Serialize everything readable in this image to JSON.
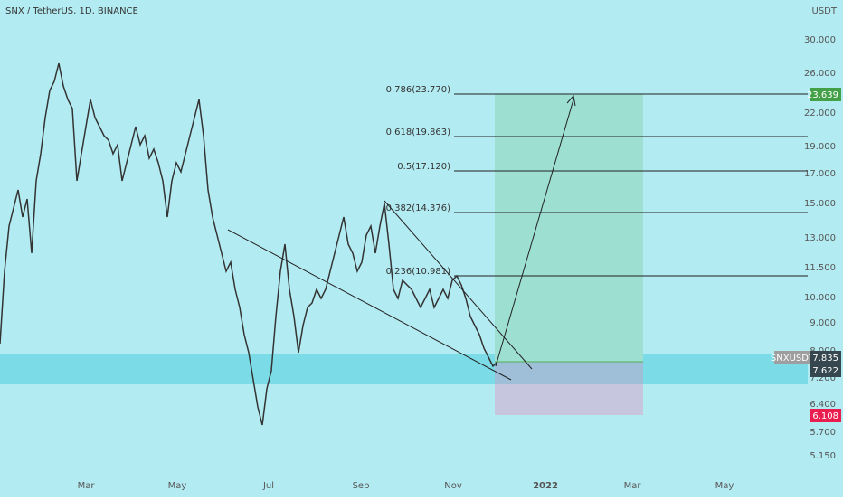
{
  "header": {
    "title": "SNX / TetherUS, 1D, BINANCE",
    "currency": "USDT"
  },
  "price_axis": {
    "labels": [
      "30.000",
      "26.000",
      "22.000",
      "19.000",
      "17.000",
      "15.000",
      "13.000",
      "11.500",
      "10.000",
      "9.000",
      "8.000",
      "7.200",
      "6.400",
      "5.700",
      "5.150"
    ]
  },
  "time_axis": {
    "labels": [
      "Mar",
      "May",
      "Jul",
      "Sep",
      "Nov",
      "2022",
      "Mar",
      "May"
    ]
  },
  "fib_levels": [
    "0.786(23.770)",
    "0.618(19.863)",
    "0.5(17.120)",
    "0.382(14.376)",
    "0.236(10.981)"
  ],
  "price_tags": {
    "target": "23.639",
    "symbol": "SNXUSDT",
    "last": "7.835",
    "entry": "7.622",
    "stop": "6.108"
  }
}
